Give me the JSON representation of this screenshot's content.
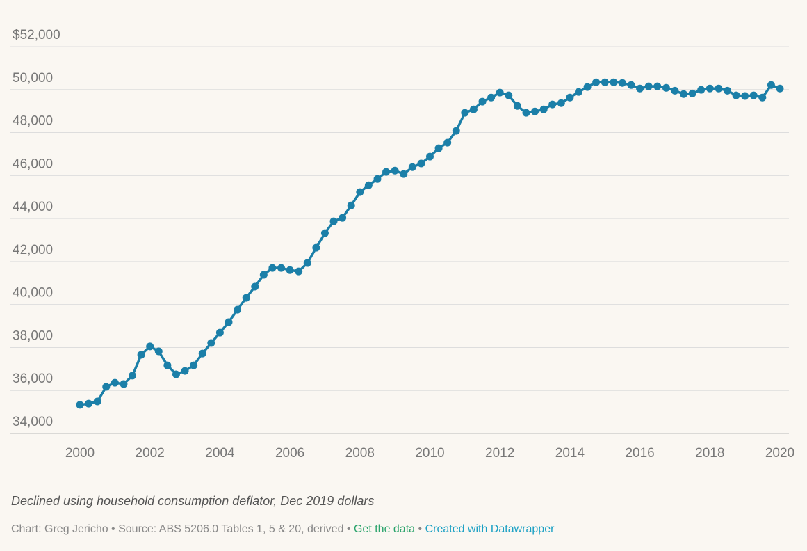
{
  "chart_data": {
    "type": "line",
    "x": [
      2000,
      2000.25,
      2000.5,
      2000.75,
      2001,
      2001.25,
      2001.5,
      2001.75,
      2002,
      2002.25,
      2002.5,
      2002.75,
      2003,
      2003.25,
      2003.5,
      2003.75,
      2004,
      2004.25,
      2004.5,
      2004.75,
      2005,
      2005.25,
      2005.5,
      2005.75,
      2006,
      2006.25,
      2006.5,
      2006.75,
      2007,
      2007.25,
      2007.5,
      2007.75,
      2008,
      2008.25,
      2008.5,
      2008.75,
      2009,
      2009.25,
      2009.5,
      2009.75,
      2010,
      2010.25,
      2010.5,
      2010.75,
      2011,
      2011.25,
      2011.5,
      2011.75,
      2012,
      2012.25,
      2012.5,
      2012.75,
      2013,
      2013.25,
      2013.5,
      2013.75,
      2014,
      2014.25,
      2014.5,
      2014.75,
      2015,
      2015.25,
      2015.5,
      2015.75,
      2016,
      2016.25,
      2016.5,
      2016.75,
      2017,
      2017.25,
      2017.5,
      2017.75,
      2018,
      2018.25,
      2018.5,
      2018.75,
      2019,
      2019.25,
      2019.5,
      2019.75,
      2020
    ],
    "series": [
      {
        "color": "#1b7fa8",
        "values": [
          35330,
          35390,
          35490,
          36170,
          36360,
          36300,
          36690,
          37660,
          38050,
          37820,
          37170,
          36750,
          36910,
          37170,
          37720,
          38210,
          38690,
          39180,
          39760,
          40310,
          40830,
          41380,
          41700,
          41700,
          41600,
          41540,
          41930,
          42640,
          43320,
          43870,
          44030,
          44610,
          45230,
          45550,
          45840,
          46170,
          46230,
          46070,
          46390,
          46560,
          46880,
          47270,
          47530,
          48080,
          48920,
          49080,
          49440,
          49630,
          49860,
          49730,
          49240,
          48920,
          48980,
          49080,
          49310,
          49370,
          49630,
          49890,
          50120,
          50340,
          50340,
          50340,
          50310,
          50210,
          50050,
          50150,
          50150,
          50080,
          49950,
          49790,
          49820,
          49990,
          50050,
          50050,
          49950,
          49730,
          49700,
          49730,
          49630,
          50210,
          50050
        ]
      }
    ],
    "xlim": [
      2000,
      2020
    ],
    "xticks": [
      2000,
      2002,
      2004,
      2006,
      2008,
      2010,
      2012,
      2014,
      2016,
      2018,
      2020
    ],
    "ylim": [
      34000,
      52000
    ],
    "yticks": [
      {
        "value": 34000,
        "label": "34,000"
      },
      {
        "value": 36000,
        "label": "36,000"
      },
      {
        "value": 38000,
        "label": "38,000"
      },
      {
        "value": 40000,
        "label": "40,000"
      },
      {
        "value": 42000,
        "label": "42,000"
      },
      {
        "value": 44000,
        "label": "44,000"
      },
      {
        "value": 46000,
        "label": "46,000"
      },
      {
        "value": 48000,
        "label": "48,000"
      },
      {
        "value": 50000,
        "label": "50,000"
      },
      {
        "value": 52000,
        "label": "$52,000"
      }
    ],
    "grid": true,
    "notes": "Declined using household consumption deflator, Dec 2019 dollars",
    "credit": "Chart: Greg Jericho • Source: ABS 5206.0 Tables 1, 5 & 20, derived",
    "separator": "•",
    "link_data": "Get the data",
    "link_created": "Created with Datawrapper"
  }
}
